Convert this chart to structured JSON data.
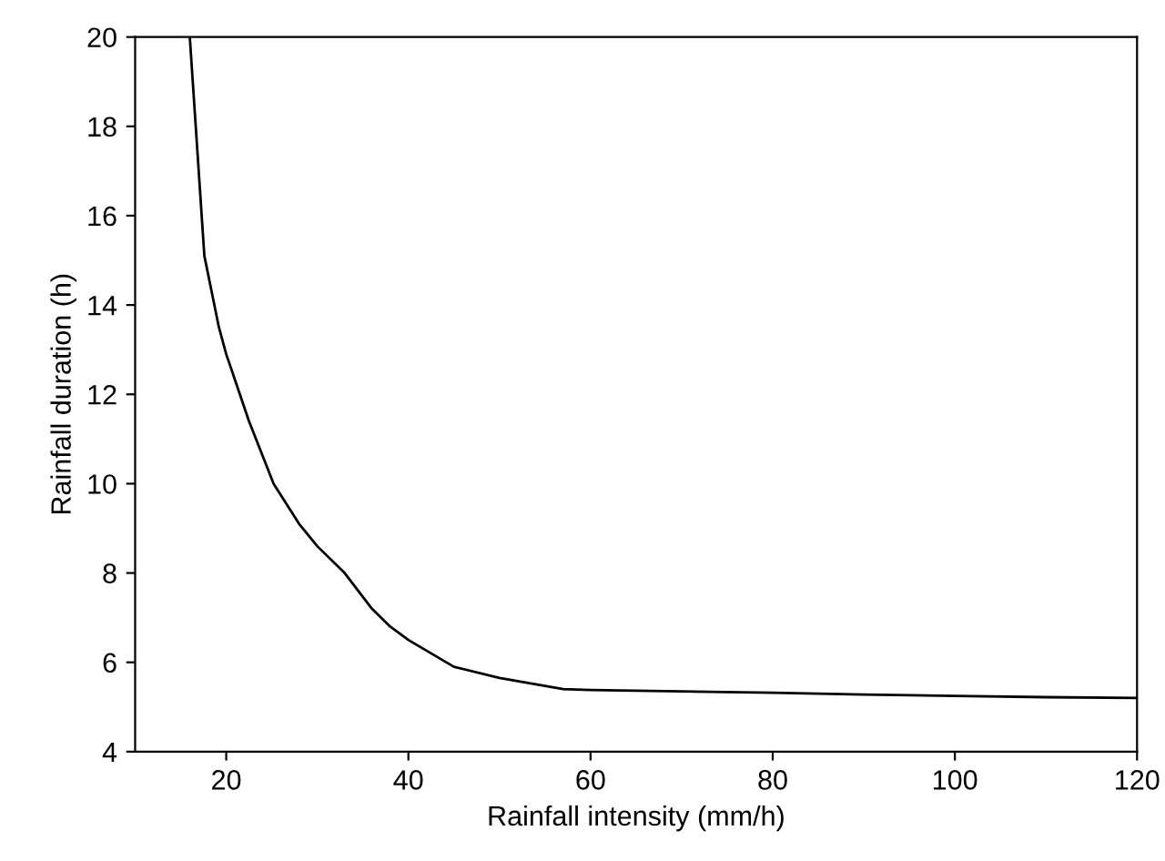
{
  "chart_data": {
    "type": "line",
    "xlabel": "Rainfall intensity (mm/h)",
    "ylabel": "Rainfall duration (h)",
    "x": [
      16,
      17.6,
      19.2,
      20,
      22.5,
      25.2,
      28,
      30,
      33,
      36,
      38,
      40,
      45,
      50,
      57,
      60,
      70,
      80,
      90,
      100,
      110,
      120
    ],
    "series": [
      {
        "color": "#000000",
        "values": [
          20,
          15.1,
          13.5,
          12.9,
          11.4,
          10.0,
          9.1,
          8.6,
          8.0,
          7.2,
          6.8,
          6.5,
          5.9,
          5.65,
          5.4,
          5.38,
          5.35,
          5.32,
          5.28,
          5.25,
          5.22,
          5.2
        ]
      }
    ],
    "xlim": [
      10,
      120
    ],
    "xticks": [
      20,
      40,
      60,
      80,
      100,
      120
    ],
    "ylim": [
      4,
      20
    ],
    "yticks": [
      4,
      6,
      8,
      10,
      12,
      14,
      16,
      18,
      20
    ],
    "grid": false,
    "legend": false,
    "marker": "none",
    "line_style": "solid"
  }
}
